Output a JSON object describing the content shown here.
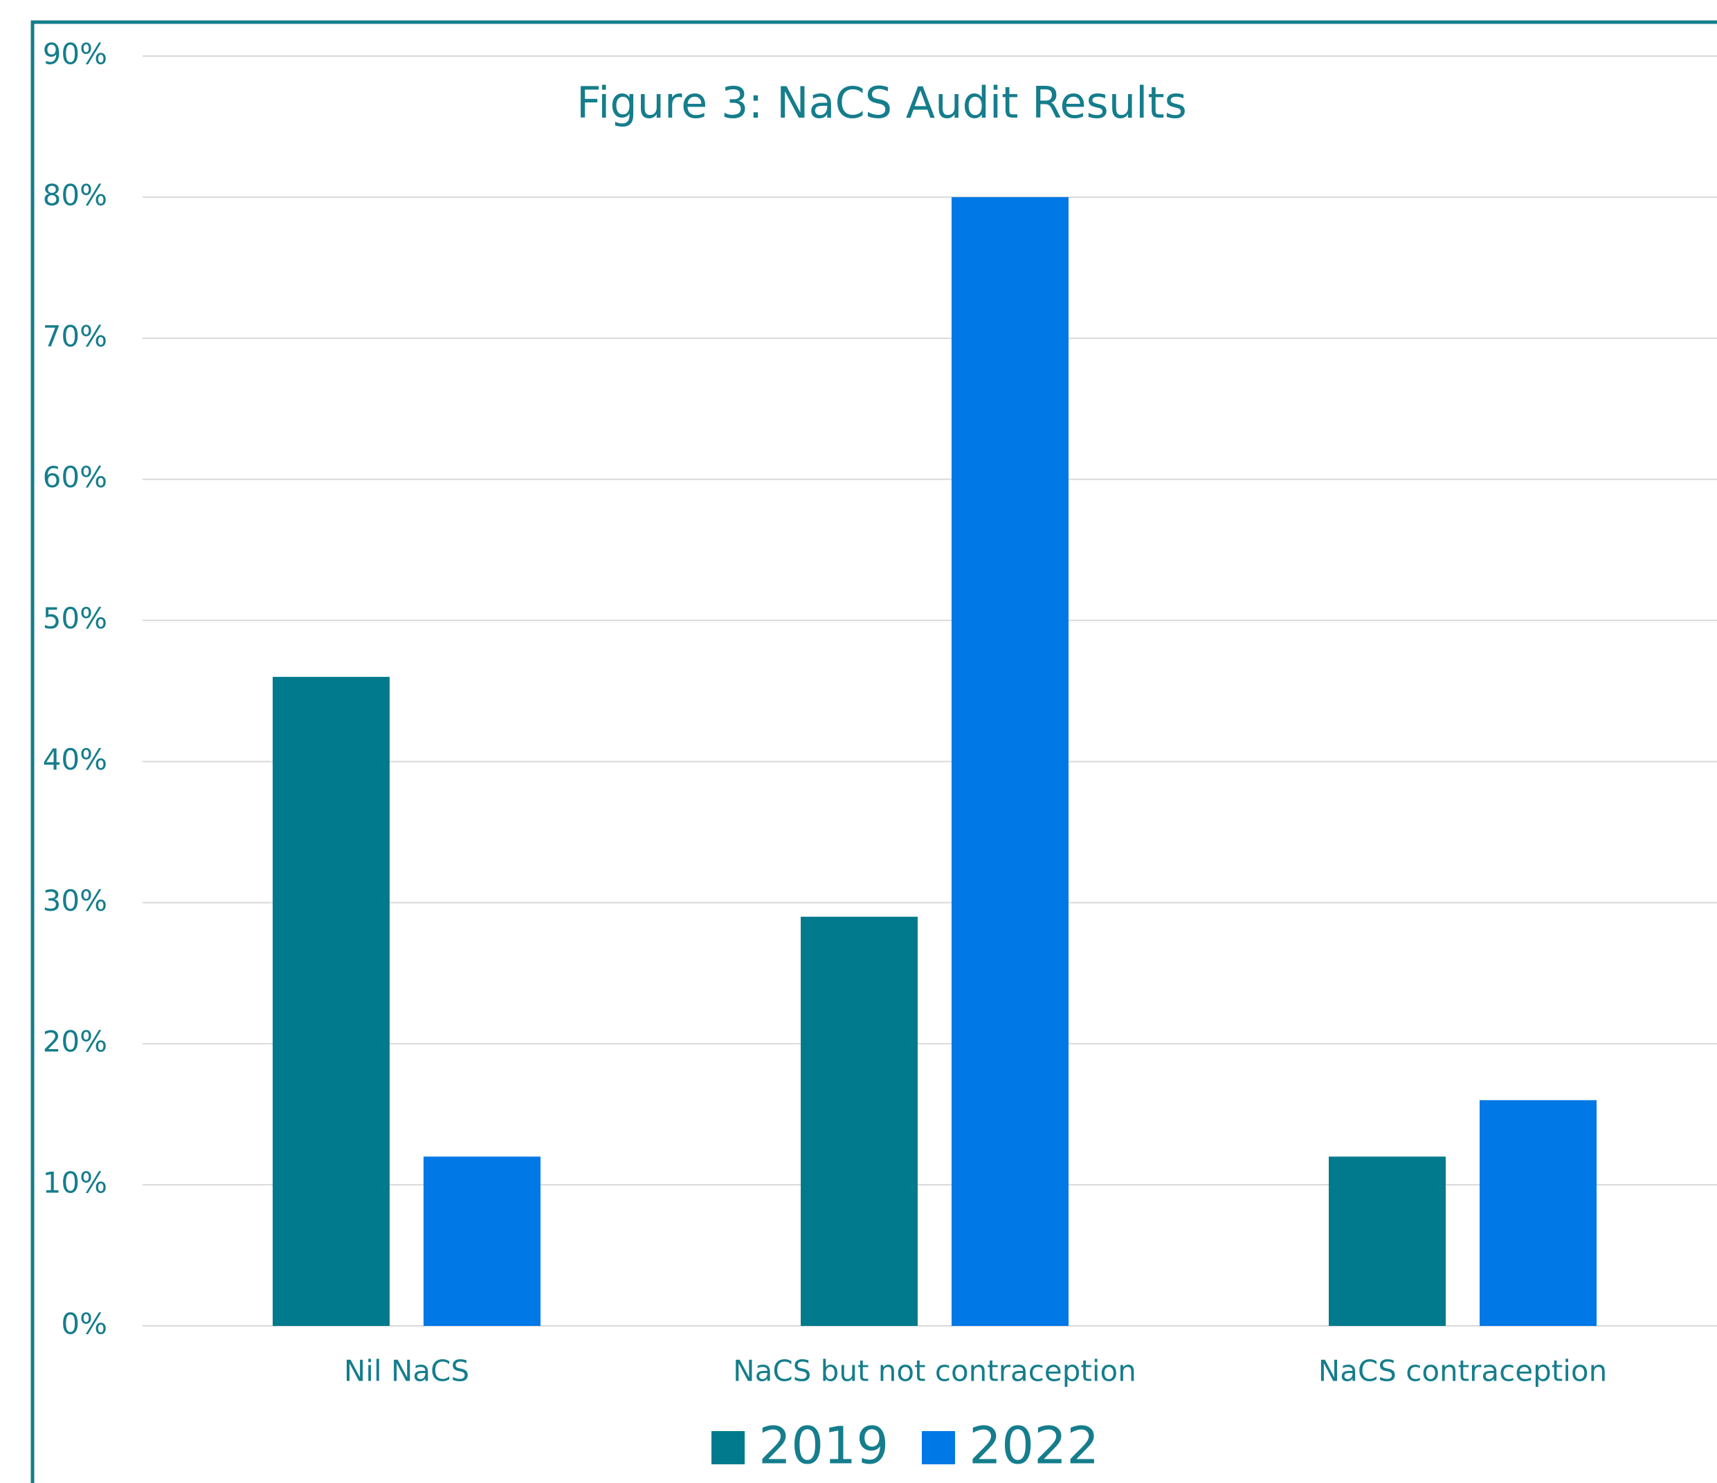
{
  "chart_data": {
    "type": "bar",
    "title": "Figure 3: NaCS Audit Results",
    "categories": [
      "Nil NaCS",
      "NaCS but not contraception",
      "NaCS contraception"
    ],
    "series": [
      {
        "name": "2019",
        "color": "#007a8c",
        "values": [
          46,
          29,
          12
        ]
      },
      {
        "name": "2022",
        "color": "#0078e6",
        "values": [
          12,
          80,
          16
        ]
      }
    ],
    "ylim": [
      0,
      90
    ],
    "yticks": [
      {
        "value": 0,
        "label": "0%"
      },
      {
        "value": 10,
        "label": "10%"
      },
      {
        "value": 20,
        "label": "20%"
      },
      {
        "value": 30,
        "label": "30%"
      },
      {
        "value": 40,
        "label": "40%"
      },
      {
        "value": 50,
        "label": "50%"
      },
      {
        "value": 60,
        "label": "60%"
      },
      {
        "value": 70,
        "label": "70%"
      },
      {
        "value": 80,
        "label": "80%"
      },
      {
        "value": 90,
        "label": "90%"
      }
    ],
    "grid": true,
    "legend": "bottom"
  }
}
